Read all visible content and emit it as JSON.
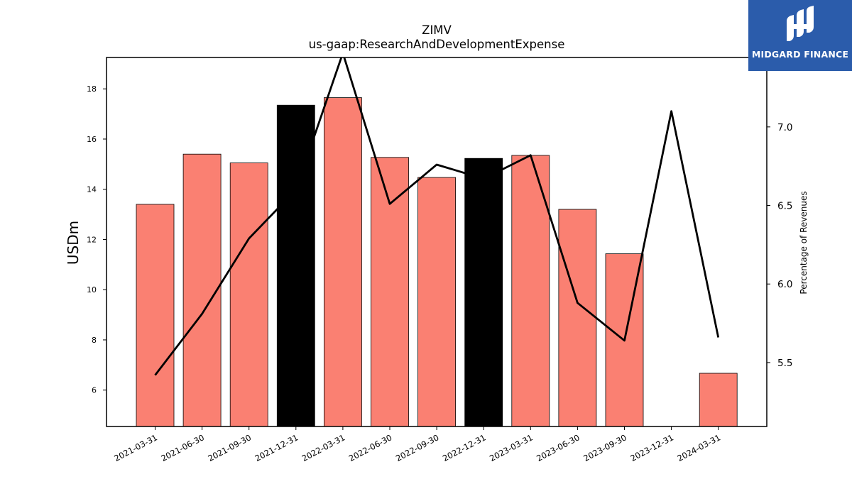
{
  "brand": {
    "name": "MIDGARD FINANCE",
    "accent": "#2b5cab"
  },
  "chart_data": {
    "type": "bar",
    "title": "ZIMV",
    "subtitle": "us-gaap:ResearchAndDevelopmentExpense",
    "ylabel": "USDm",
    "y2label": "Percentage of Revenues",
    "ylim": [
      4.55,
      19.25
    ],
    "y2lim": [
      5.093,
      7.442
    ],
    "yticks": [
      6,
      8,
      10,
      12,
      14,
      16,
      18
    ],
    "y2ticks": [
      "5.5",
      "6.0",
      "6.5",
      "7.0"
    ],
    "categories": [
      "2021-03-31",
      "2021-06-30",
      "2021-09-30",
      "2021-12-31",
      "2022-03-31",
      "2022-06-30",
      "2022-09-30",
      "2022-12-31",
      "2023-03-31",
      "2023-06-30",
      "2023-09-30",
      "2023-12-31",
      "2024-03-31"
    ],
    "series": [
      {
        "type": "bar",
        "values": [
          13.4,
          15.4,
          15.05,
          17.35,
          17.65,
          15.27,
          14.47,
          15.23,
          15.35,
          13.2,
          11.43,
          null,
          6.67
        ],
        "colors": [
          "#fa8072",
          "#fa8072",
          "#fa8072",
          "#000000",
          "#fa8072",
          "#fa8072",
          "#fa8072",
          "#000000",
          "#fa8072",
          "#fa8072",
          "#fa8072",
          "#fa8072",
          "#fa8072"
        ]
      },
      {
        "type": "line",
        "axis": "right",
        "color": "#000000",
        "values": [
          5.42,
          5.81,
          6.29,
          6.6,
          7.47,
          6.51,
          6.76,
          6.67,
          6.82,
          5.88,
          5.64,
          7.1,
          5.66
        ]
      }
    ],
    "grid": false,
    "legend": "none"
  }
}
